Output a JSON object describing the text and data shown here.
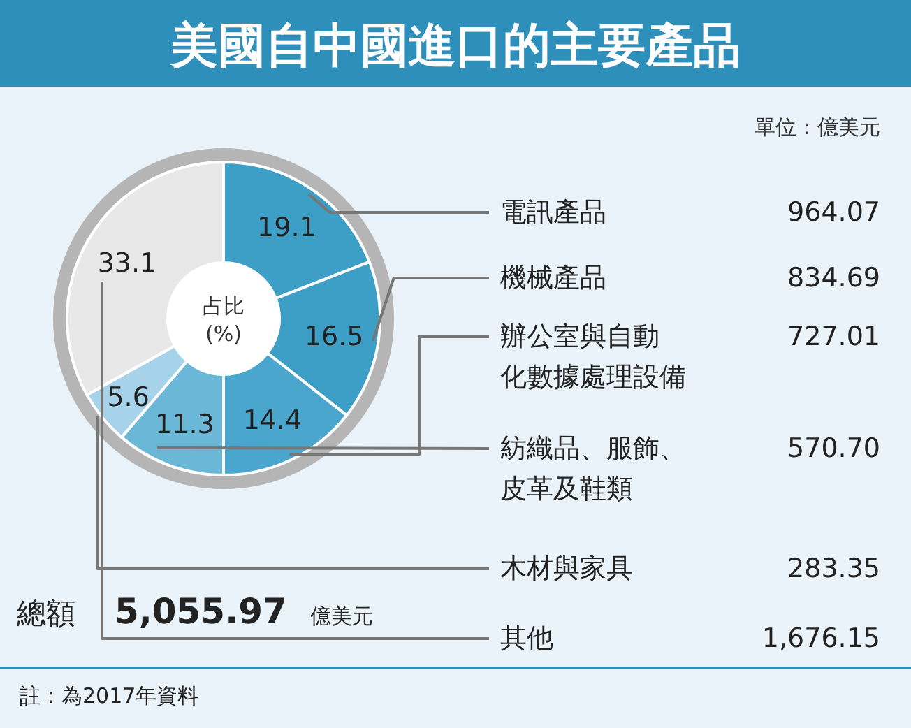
{
  "chart_data": {
    "type": "donut",
    "title": "美國自中國進口的主要產品",
    "categories": [
      "電訊產品",
      "機械產品",
      "辦公室與自動化數據處理設備",
      "紡織品、服飾、皮革及鞋類",
      "木材與家具",
      "其他"
    ],
    "values": [
      19.1,
      16.5,
      14.4,
      11.3,
      5.6,
      33.1
    ],
    "data_labels": true,
    "colors": [
      "#3d9ec6",
      "#3d9ec6",
      "#4aa6cc",
      "#6bb7d8",
      "#a6d3ea",
      "#e8e8e8"
    ],
    "annotations": [
      "單位：億美元",
      "占比(%)",
      "總額",
      "5,055.97",
      "億美元",
      "註：為2017年資料",
      "964.07",
      "834.69",
      "727.01",
      "570.70",
      "283.35",
      "1,676.15"
    ]
  }
}
